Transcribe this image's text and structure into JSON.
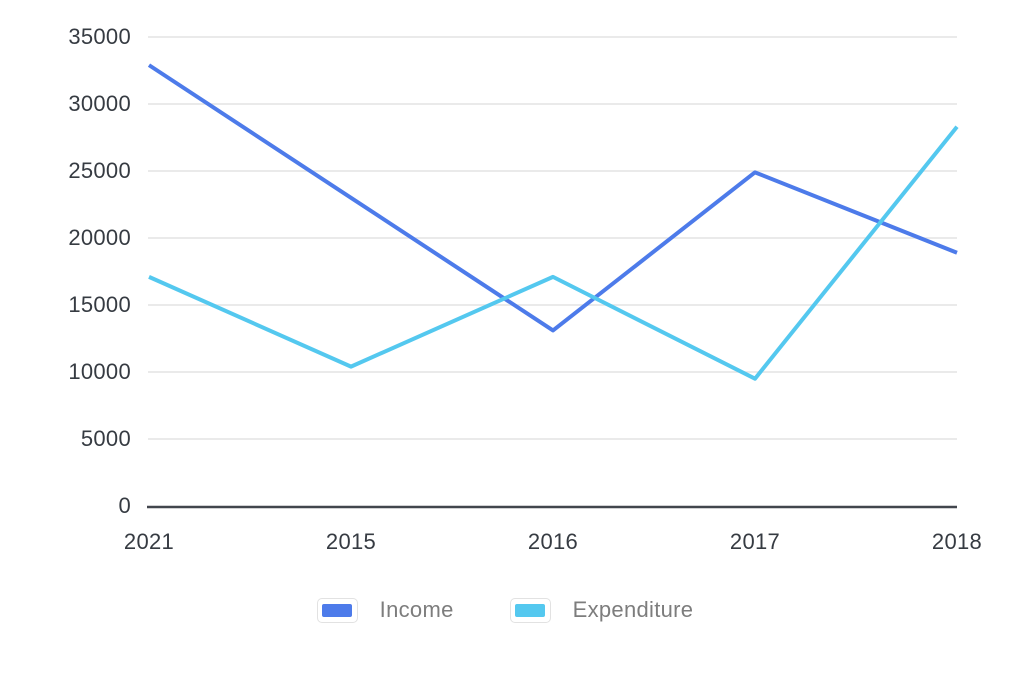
{
  "chart_data": {
    "type": "line",
    "categories": [
      "2021",
      "2015",
      "2016",
      "2017",
      "2018"
    ],
    "series": [
      {
        "name": "Income",
        "color": "#4d7bea",
        "values": [
          32900,
          23000,
          13100,
          24900,
          18900
        ]
      },
      {
        "name": "Expenditure",
        "color": "#54c8ef",
        "values": [
          17100,
          10400,
          17100,
          9500,
          28300
        ]
      }
    ],
    "title": "",
    "xlabel": "",
    "ylabel": "",
    "ylim": [
      0,
      35000
    ],
    "y_ticks": [
      0,
      5000,
      10000,
      15000,
      20000,
      25000,
      30000,
      35000
    ],
    "grid": true,
    "legend_position": "bottom"
  },
  "colors": {
    "background": "#ffffff",
    "grid_line": "#e4e4e4",
    "axis_line": "#42464d",
    "tick_label": "#363b42",
    "legend_label": "#7d7d7d",
    "legend_swatch_border": "#e2e2e2",
    "income_line": "#4d7bea",
    "expenditure_line": "#54c8ef"
  }
}
